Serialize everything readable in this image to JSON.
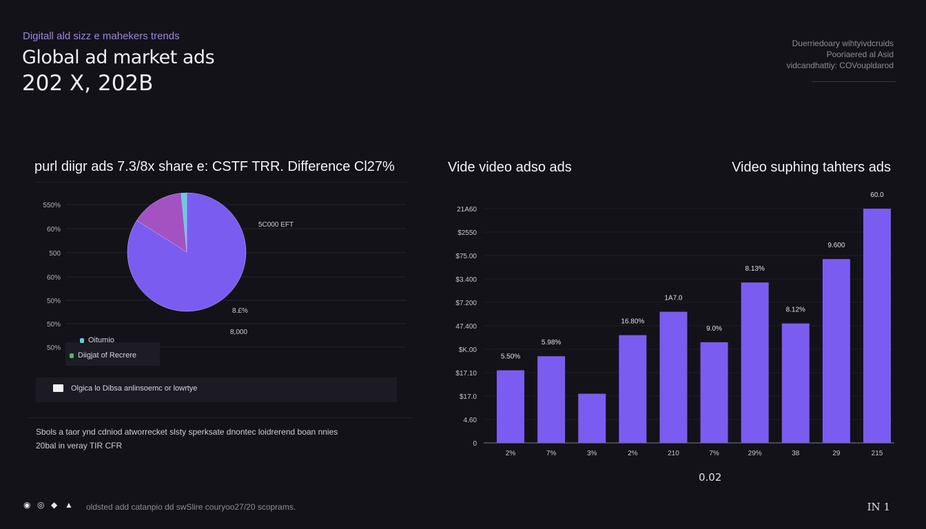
{
  "header": {
    "eyebrow": "Digitall ald sizz e mahekers trends",
    "title": "Global ad market ads",
    "subtitle": "202 X, 202B",
    "notes": [
      "Duerriedoary wihtyivdcruids",
      "Pooriaered al Asid",
      "vidcandhattiy: COVoupldarod"
    ]
  },
  "left_panel": {
    "heading": "purl diigr ads 7.3/8x share e: CSTF TRR. Difference Cl27%",
    "footer_legend": "Olgica lo Dibsa anlinsoemc or lowrtye",
    "description": [
      "Sbols a taor ynd cdniod atworrecket slsty sperksate dnontec loidrerend boan nnies",
      "20bal in veray TIR CFR"
    ]
  },
  "right_panel": {
    "heading_left": "Vide video adso ads",
    "heading_right": "Video suphing tahters ads"
  },
  "chart_data": [
    {
      "type": "pie",
      "y_tick_labels": [
        "550%",
        "60%",
        "500",
        "60%",
        "50%",
        "50%",
        "50%"
      ],
      "slices": [
        {
          "name": "Diigjat of Recrere",
          "value": 84,
          "color": "#7b5cf0"
        },
        {
          "name": "",
          "value": 14.5,
          "color": "#a452c2"
        },
        {
          "name": "Oitumio",
          "value": 1.5,
          "color": "#5fd0dc"
        }
      ],
      "annotations": [
        "5C000 EFT",
        "8.£%",
        "8,000"
      ],
      "legend": [
        {
          "label": "Oitumio",
          "color": "#5fd0dc"
        },
        {
          "label": "Diigjat of Recrere",
          "color": "#58b65a"
        }
      ],
      "grid": true
    },
    {
      "type": "bar",
      "y_tick_labels": [
        "0",
        "4.60",
        "$17.0",
        "$17.10",
        "$K.00",
        "47.400",
        "$7.200",
        "$3.400",
        "$75.00",
        "$2550",
        "21A60"
      ],
      "categories": [
        "2%",
        "7%",
        "3%",
        "2%",
        "210",
        "7%",
        "29%",
        "38",
        "29",
        "215"
      ],
      "values": [
        3.1,
        3.7,
        2.1,
        4.6,
        5.6,
        4.3,
        6.85,
        5.1,
        7.85,
        10
      ],
      "data_labels": [
        "5.50%",
        "5.98%",
        "",
        "16.80%",
        "1A7.0",
        "9.0%",
        "8.13%",
        "8.12%",
        "9.600",
        "60.0"
      ],
      "xlabel": "0.02",
      "ylim": [
        0,
        10
      ],
      "color": "#7b5cf0",
      "grid": true
    }
  ],
  "footer": {
    "icons": [
      "swirl-icon",
      "target-icon",
      "drop-icon",
      "leaf-icon"
    ],
    "text": "oldsted add catanpio dd swSlire couryoo27/20 scoprams.",
    "page": "IN 1"
  }
}
